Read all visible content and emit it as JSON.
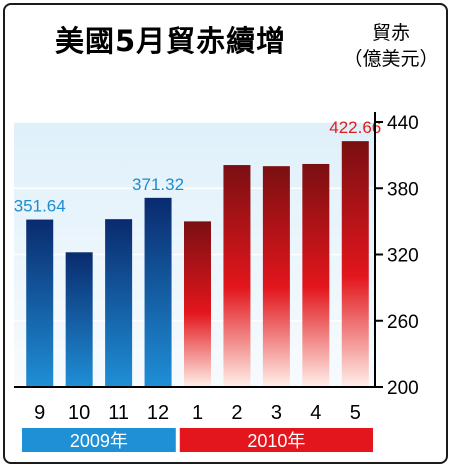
{
  "title": "美國5月貿赤續增",
  "unit_line1": "貿赤",
  "unit_line2": "（億美元）",
  "colors": {
    "blue_top": "#0a2a6e",
    "blue_bottom": "#1f8fd6",
    "red_top": "#7a0f12",
    "red_mid": "#e2161c",
    "red_bottom": "#fff0ea",
    "label_blue": "#1e8bd0",
    "label_red": "#e01b1b",
    "year2009": "#1f8fd6",
    "year2010": "#e2161c"
  },
  "chart_data": {
    "type": "bar",
    "categories": [
      "9",
      "10",
      "11",
      "12",
      "1",
      "2",
      "3",
      "4",
      "5"
    ],
    "values": [
      351.64,
      322,
      352,
      371.32,
      350,
      401,
      400,
      402,
      422.66
    ],
    "groups": [
      {
        "label": "2009年",
        "start": 0,
        "end": 3
      },
      {
        "label": "2010年",
        "start": 4,
        "end": 8
      }
    ],
    "data_labels": [
      {
        "index": 0,
        "text": "351.64"
      },
      {
        "index": 3,
        "text": "371.32"
      },
      {
        "index": 8,
        "text": "422.66"
      }
    ],
    "ylim": [
      200,
      440
    ],
    "yticks": [
      "200",
      "260",
      "320",
      "380",
      "440"
    ],
    "ytick_values": [
      200,
      260,
      320,
      380,
      440
    ]
  }
}
